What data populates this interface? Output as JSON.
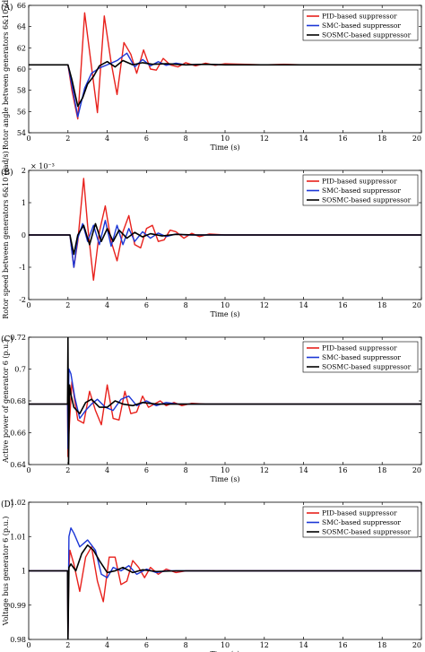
{
  "colors": {
    "pid": "#e8211c",
    "smc": "#1b36d6",
    "sosmc": "#000000"
  },
  "chart_data": [
    {
      "type": "line",
      "panel_label": "(A)",
      "xlabel": "Time (s)",
      "ylabel": "Rotor angle between generators 6&10 (deg)",
      "xlim": [
        0,
        20
      ],
      "ylim": [
        54,
        66
      ],
      "xticks": [
        "0",
        "2",
        "4",
        "6",
        "8",
        "10",
        "12",
        "14",
        "16",
        "18",
        "20"
      ],
      "yticks": [
        "54",
        "56",
        "58",
        "60",
        "62",
        "64",
        "66"
      ],
      "y_exponent": "",
      "grid": false,
      "legend_position": "top-right",
      "series": [
        {
          "name": "PID-based suppressor",
          "color": "#e8211c",
          "x": [
            0,
            2.0,
            2.2,
            2.5,
            2.85,
            3.2,
            3.5,
            3.85,
            4.2,
            4.5,
            4.85,
            5.2,
            5.5,
            5.85,
            6.2,
            6.5,
            6.85,
            7.2,
            7.6,
            8.0,
            8.5,
            9.0,
            9.5,
            10,
            11,
            12,
            13,
            14,
            16,
            18,
            20
          ],
          "y": [
            60.4,
            60.4,
            58.0,
            55.3,
            65.3,
            60.2,
            55.9,
            65.0,
            60.6,
            57.6,
            62.5,
            61.4,
            59.6,
            61.8,
            60.0,
            59.9,
            61.0,
            60.4,
            60.2,
            60.6,
            60.3,
            60.55,
            60.35,
            60.5,
            60.45,
            60.4,
            60.45,
            60.4,
            60.4,
            60.4,
            60.4
          ]
        },
        {
          "name": "SMC-based suppressor",
          "color": "#1b36d6",
          "x": [
            0,
            2.0,
            2.2,
            2.5,
            2.85,
            3.2,
            3.6,
            4.0,
            4.5,
            5.0,
            5.4,
            5.8,
            6.2,
            6.6,
            7.0,
            7.5,
            8.0,
            9.0,
            10,
            12,
            14,
            16,
            18,
            20
          ],
          "y": [
            60.4,
            60.4,
            58.5,
            55.5,
            58.2,
            59.6,
            60.1,
            60.4,
            60.8,
            61.5,
            60.2,
            60.9,
            60.3,
            60.7,
            60.35,
            60.55,
            60.4,
            60.45,
            60.4,
            60.4,
            60.4,
            60.4,
            60.4,
            60.4
          ]
        },
        {
          "name": "SOSMC-based suppressor",
          "color": "#000000",
          "x": [
            0,
            2.0,
            2.2,
            2.5,
            2.75,
            3.0,
            3.3,
            3.6,
            4.0,
            4.4,
            4.8,
            5.3,
            5.8,
            6.3,
            7.0,
            8.0,
            9.0,
            10,
            12,
            14,
            16,
            18,
            20
          ],
          "y": [
            60.4,
            60.4,
            59.0,
            56.5,
            57.3,
            58.6,
            59.3,
            60.3,
            60.7,
            60.2,
            60.8,
            60.4,
            60.6,
            60.45,
            60.5,
            60.4,
            60.45,
            60.4,
            60.4,
            60.4,
            60.4,
            60.4,
            60.4
          ]
        }
      ]
    },
    {
      "type": "line",
      "panel_label": "(B)",
      "xlabel": "Time (s)",
      "ylabel": "Rotor speed between generators 6&10 (rad/s)",
      "xlim": [
        0,
        20
      ],
      "ylim": [
        -2,
        2
      ],
      "xticks": [
        "0",
        "2",
        "4",
        "6",
        "8",
        "10",
        "12",
        "14",
        "16",
        "18",
        "20"
      ],
      "yticks": [
        "-2",
        "-1",
        "0",
        "1",
        "2"
      ],
      "y_exponent": "× 10⁻³",
      "grid": false,
      "legend_position": "top-right",
      "series": [
        {
          "name": "PID-based suppressor",
          "color": "#e8211c",
          "x": [
            0,
            2.0,
            2.1,
            2.3,
            2.5,
            2.8,
            3.0,
            3.3,
            3.6,
            3.9,
            4.2,
            4.5,
            4.8,
            5.1,
            5.4,
            5.7,
            6.0,
            6.3,
            6.6,
            6.9,
            7.2,
            7.5,
            7.9,
            8.3,
            8.7,
            9.2,
            10,
            11,
            12,
            14,
            16,
            18,
            20
          ],
          "y": [
            0,
            0,
            0,
            -1.0,
            -0.2,
            1.75,
            0.3,
            -1.4,
            0.1,
            0.9,
            -0.2,
            -0.8,
            0.1,
            0.6,
            -0.3,
            -0.4,
            0.2,
            0.3,
            -0.2,
            -0.15,
            0.15,
            0.1,
            -0.1,
            0.05,
            -0.05,
            0.03,
            0,
            0,
            0,
            0,
            0,
            0,
            0
          ]
        },
        {
          "name": "SMC-based suppressor",
          "color": "#1b36d6",
          "x": [
            0,
            2.0,
            2.1,
            2.3,
            2.5,
            2.75,
            3.0,
            3.3,
            3.6,
            3.9,
            4.2,
            4.5,
            4.8,
            5.1,
            5.4,
            5.8,
            6.2,
            6.6,
            7.0,
            7.5,
            8.0,
            9.0,
            10,
            12,
            14,
            16,
            18,
            20
          ],
          "y": [
            0,
            0,
            0,
            -1.0,
            -0.1,
            0.35,
            -0.2,
            0.3,
            -0.3,
            0.45,
            -0.35,
            0.3,
            -0.3,
            0.2,
            -0.2,
            0.1,
            -0.1,
            0.06,
            -0.05,
            0.03,
            0,
            0,
            0,
            0,
            0,
            0,
            0,
            0
          ]
        },
        {
          "name": "SOSMC-based suppressor",
          "color": "#000000",
          "x": [
            0,
            2.0,
            2.1,
            2.3,
            2.5,
            2.8,
            3.1,
            3.4,
            3.7,
            4.0,
            4.3,
            4.6,
            5.0,
            5.4,
            5.8,
            6.2,
            6.8,
            7.5,
            8.5,
            10,
            12,
            14,
            16,
            18,
            20
          ],
          "y": [
            0,
            0,
            0,
            -0.6,
            0,
            0.3,
            -0.3,
            0.35,
            -0.2,
            0.2,
            -0.2,
            0.15,
            -0.1,
            0.08,
            -0.06,
            0.04,
            -0.03,
            0.02,
            0,
            0,
            0,
            0,
            0,
            0,
            0
          ]
        }
      ]
    },
    {
      "type": "line",
      "panel_label": "(C)",
      "xlabel": "Time (s)",
      "ylabel": "Active power of generator 6 (p.u.)",
      "xlim": [
        0,
        20
      ],
      "ylim": [
        0.64,
        0.72
      ],
      "xticks": [
        "0",
        "2",
        "4",
        "6",
        "8",
        "10",
        "12",
        "14",
        "16",
        "18",
        "20"
      ],
      "yticks": [
        "0.64",
        "0.66",
        "0.68",
        "0.7",
        "0.72"
      ],
      "y_exponent": "",
      "grid": false,
      "legend_position": "top-right",
      "series": [
        {
          "name": "PID-based suppressor",
          "color": "#e8211c",
          "x": [
            0,
            1.98,
            2.0,
            2.05,
            2.2,
            2.5,
            2.8,
            3.1,
            3.4,
            3.7,
            4.0,
            4.3,
            4.6,
            4.9,
            5.2,
            5.5,
            5.8,
            6.1,
            6.4,
            6.7,
            7.0,
            7.4,
            7.8,
            8.3,
            9.0,
            10,
            12,
            14,
            16,
            18,
            20
          ],
          "y": [
            0.678,
            0.678,
            0.645,
            0.66,
            0.692,
            0.668,
            0.666,
            0.686,
            0.674,
            0.665,
            0.69,
            0.669,
            0.668,
            0.686,
            0.672,
            0.673,
            0.683,
            0.676,
            0.678,
            0.68,
            0.677,
            0.679,
            0.677,
            0.6785,
            0.678,
            0.678,
            0.678,
            0.678,
            0.678,
            0.678,
            0.678
          ]
        },
        {
          "name": "SMC-based suppressor",
          "color": "#1b36d6",
          "x": [
            0,
            1.98,
            2.0,
            2.05,
            2.15,
            2.35,
            2.6,
            2.9,
            3.2,
            3.5,
            3.9,
            4.3,
            4.7,
            5.1,
            5.5,
            6.0,
            6.5,
            7.0,
            7.6,
            8.3,
            9.0,
            10,
            12,
            14,
            16,
            18,
            20
          ],
          "y": [
            0.678,
            0.678,
            0.65,
            0.7,
            0.697,
            0.682,
            0.669,
            0.674,
            0.678,
            0.681,
            0.676,
            0.674,
            0.681,
            0.683,
            0.677,
            0.68,
            0.677,
            0.679,
            0.678,
            0.678,
            0.678,
            0.678,
            0.678,
            0.678,
            0.678,
            0.678,
            0.678
          ]
        },
        {
          "name": "SOSMC-based suppressor",
          "color": "#000000",
          "x": [
            0,
            1.98,
            2.0,
            2.03,
            2.08,
            2.15,
            2.3,
            2.6,
            2.9,
            3.2,
            3.6,
            4.0,
            4.4,
            4.8,
            5.3,
            5.8,
            6.5,
            7.5,
            9.0,
            10,
            12,
            14,
            16,
            18,
            20
          ],
          "y": [
            0.678,
            0.678,
            0.72,
            0.64,
            0.69,
            0.684,
            0.676,
            0.672,
            0.679,
            0.681,
            0.676,
            0.676,
            0.68,
            0.678,
            0.677,
            0.679,
            0.678,
            0.678,
            0.678,
            0.678,
            0.678,
            0.678,
            0.678,
            0.678,
            0.678
          ]
        }
      ]
    },
    {
      "type": "line",
      "panel_label": "(D)",
      "xlabel": "Time (s)",
      "ylabel": "Voltage bus generator 6 (p.u.)",
      "xlim": [
        0,
        20
      ],
      "ylim": [
        0.98,
        1.02
      ],
      "xticks": [
        "0",
        "2",
        "4",
        "6",
        "8",
        "10",
        "12",
        "14",
        "16",
        "18",
        "20"
      ],
      "yticks": [
        "0.98",
        "0.99",
        "1",
        "1.01",
        "1.02"
      ],
      "y_exponent": "",
      "grid": false,
      "legend_position": "top-right",
      "series": [
        {
          "name": "PID-based suppressor",
          "color": "#e8211c",
          "x": [
            0,
            1.98,
            2.0,
            2.04,
            2.1,
            2.3,
            2.6,
            2.9,
            3.2,
            3.5,
            3.8,
            4.1,
            4.4,
            4.7,
            5.0,
            5.3,
            5.6,
            5.9,
            6.2,
            6.6,
            7.0,
            7.5,
            8.0,
            9.0,
            10,
            12,
            14,
            16,
            18,
            20
          ],
          "y": [
            1.0,
            1.0,
            0.98,
            1.0,
            1.006,
            1.002,
            0.994,
            1.004,
            1.007,
            0.997,
            0.991,
            1.004,
            1.004,
            0.996,
            0.997,
            1.003,
            1.001,
            0.998,
            1.001,
            0.999,
            1.0005,
            0.9995,
            1.0,
            1.0,
            1.0,
            1.0,
            1.0,
            1.0,
            1.0,
            1.0
          ]
        },
        {
          "name": "SMC-based suppressor",
          "color": "#1b36d6",
          "x": [
            0,
            1.98,
            2.0,
            2.05,
            2.15,
            2.3,
            2.6,
            3.0,
            3.4,
            3.7,
            4.0,
            4.3,
            4.7,
            5.1,
            5.5,
            6.0,
            6.5,
            7.0,
            8.0,
            10,
            12,
            14,
            16,
            18,
            20
          ],
          "y": [
            1.0,
            1.0,
            0.98,
            1.01,
            1.0125,
            1.011,
            1.007,
            1.009,
            1.006,
            0.999,
            0.998,
            1.001,
            1.0,
            1.0015,
            0.999,
            1.0005,
            0.9995,
            1.0,
            1.0,
            1.0,
            1.0,
            1.0,
            1.0,
            1.0,
            1.0
          ]
        },
        {
          "name": "SOSMC-based suppressor",
          "color": "#000000",
          "x": [
            0,
            1.98,
            2.0,
            2.05,
            2.15,
            2.4,
            2.7,
            3.0,
            3.3,
            3.6,
            4.0,
            4.4,
            4.8,
            5.3,
            5.8,
            6.5,
            7.5,
            9.0,
            10,
            12,
            14,
            16,
            18,
            20
          ],
          "y": [
            1.0,
            1.0,
            0.98,
            1.001,
            1.002,
            1.0,
            1.005,
            1.0075,
            1.006,
            1.003,
            0.9995,
            1.0,
            1.001,
            0.9995,
            1.0003,
            0.9998,
            1.0,
            1.0,
            1.0,
            1.0,
            1.0,
            1.0,
            1.0,
            1.0
          ]
        }
      ]
    }
  ]
}
